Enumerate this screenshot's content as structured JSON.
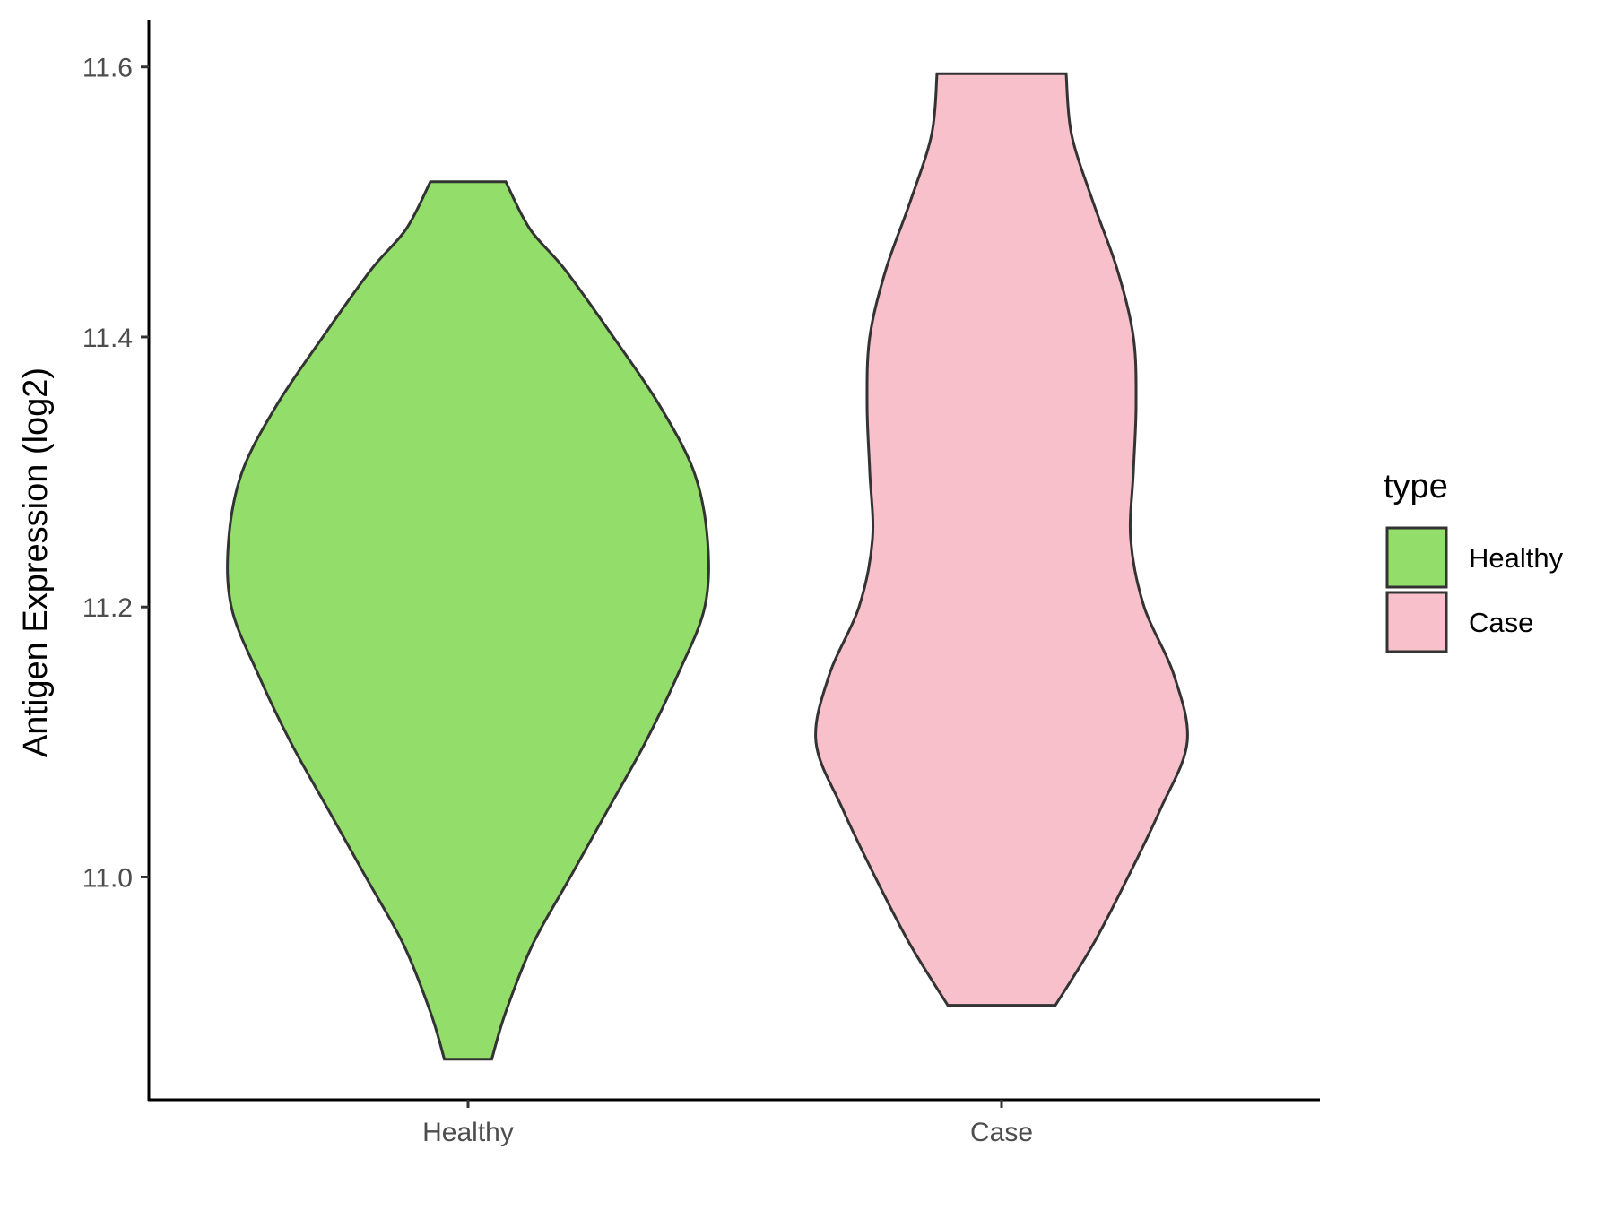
{
  "chart_data": {
    "type": "violin",
    "categories": [
      "Healthy",
      "Case"
    ],
    "ylabel": "Antigen Expression (log2)",
    "xlabel": "",
    "ylim": [
      10.835,
      11.635
    ],
    "yticks": [
      11.0,
      11.2,
      11.4,
      11.6
    ],
    "ytick_labels": [
      "11.0",
      "11.2",
      "11.4",
      "11.6"
    ],
    "grid": false,
    "legend": {
      "title": "type",
      "position": "right",
      "entries": [
        {
          "label": "Healthy",
          "color": "#93dd6b"
        },
        {
          "label": "Case",
          "color": "#f7c0cb"
        }
      ]
    },
    "series": [
      {
        "category": "Healthy",
        "color": "#93dd6b",
        "min": 10.865,
        "max": 11.515,
        "density_profile": [
          {
            "y": 10.865,
            "half_width": 0.088
          },
          {
            "y": 10.9,
            "half_width": 0.14
          },
          {
            "y": 10.95,
            "half_width": 0.24
          },
          {
            "y": 11.0,
            "half_width": 0.38
          },
          {
            "y": 11.05,
            "half_width": 0.52
          },
          {
            "y": 11.1,
            "half_width": 0.66
          },
          {
            "y": 11.15,
            "half_width": 0.78
          },
          {
            "y": 11.2,
            "half_width": 0.88
          },
          {
            "y": 11.25,
            "half_width": 0.89
          },
          {
            "y": 11.3,
            "half_width": 0.84
          },
          {
            "y": 11.35,
            "half_width": 0.71
          },
          {
            "y": 11.4,
            "half_width": 0.54
          },
          {
            "y": 11.45,
            "half_width": 0.36
          },
          {
            "y": 11.48,
            "half_width": 0.23
          },
          {
            "y": 11.515,
            "half_width": 0.14
          }
        ]
      },
      {
        "category": "Case",
        "color": "#f7c0cb",
        "min": 10.905,
        "max": 11.595,
        "density_profile": [
          {
            "y": 10.905,
            "half_width": 0.2
          },
          {
            "y": 10.95,
            "half_width": 0.34
          },
          {
            "y": 11.0,
            "half_width": 0.47
          },
          {
            "y": 11.05,
            "half_width": 0.59
          },
          {
            "y": 11.1,
            "half_width": 0.69
          },
          {
            "y": 11.15,
            "half_width": 0.64
          },
          {
            "y": 11.2,
            "half_width": 0.53
          },
          {
            "y": 11.25,
            "half_width": 0.48
          },
          {
            "y": 11.3,
            "half_width": 0.49
          },
          {
            "y": 11.35,
            "half_width": 0.5
          },
          {
            "y": 11.4,
            "half_width": 0.49
          },
          {
            "y": 11.45,
            "half_width": 0.43
          },
          {
            "y": 11.5,
            "half_width": 0.34
          },
          {
            "y": 11.55,
            "half_width": 0.26
          },
          {
            "y": 11.595,
            "half_width": 0.24
          }
        ]
      }
    ]
  }
}
